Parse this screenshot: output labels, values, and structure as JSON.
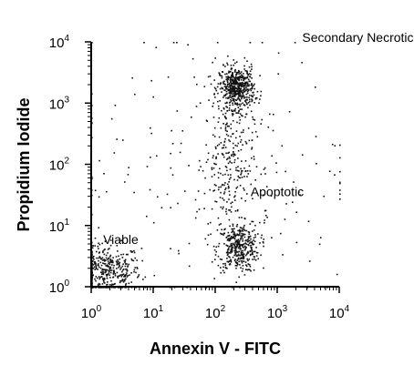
{
  "chart_data": {
    "type": "scatter",
    "title": "",
    "xlabel": "Annexin V - FITC",
    "ylabel": "Propidium Iodide",
    "x_scale": "log",
    "y_scale": "log",
    "xlim": [
      1,
      10000
    ],
    "ylim": [
      1,
      10000
    ],
    "grid": false,
    "x_ticks": [
      {
        "base": "10",
        "exp": "0",
        "value": 1
      },
      {
        "base": "10",
        "exp": "1",
        "value": 10
      },
      {
        "base": "10",
        "exp": "2",
        "value": 100
      },
      {
        "base": "10",
        "exp": "3",
        "value": 1000
      },
      {
        "base": "10",
        "exp": "4",
        "value": 10000
      }
    ],
    "y_ticks": [
      {
        "base": "10",
        "exp": "0",
        "value": 1
      },
      {
        "base": "10",
        "exp": "1",
        "value": 10
      },
      {
        "base": "10",
        "exp": "2",
        "value": 100
      },
      {
        "base": "10",
        "exp": "3",
        "value": 1000
      },
      {
        "base": "10",
        "exp": "4",
        "value": 10000
      }
    ],
    "annotations": [
      {
        "text": "Secondary Necrotic",
        "x": 20000,
        "y": 10000
      },
      {
        "text": "Apoptotic",
        "x": 1000,
        "y": 30
      },
      {
        "text": "Viable",
        "x": 3,
        "y": 5
      }
    ],
    "populations": [
      {
        "center": [
          1.7,
          1.8
        ],
        "spread": [
          0.28,
          0.22
        ],
        "count": 420
      },
      {
        "center": [
          230,
          4.5
        ],
        "spread": [
          0.17,
          0.2
        ],
        "count": 380
      },
      {
        "center": [
          220,
          1800
        ],
        "spread": [
          0.14,
          0.17
        ],
        "count": 520
      },
      {
        "center": [
          160,
          120
        ],
        "spread": [
          0.2,
          0.55
        ],
        "count": 260
      },
      {
        "center": [
          100,
          100
        ],
        "spread": [
          1.3,
          1.3
        ],
        "count": 200
      }
    ]
  }
}
